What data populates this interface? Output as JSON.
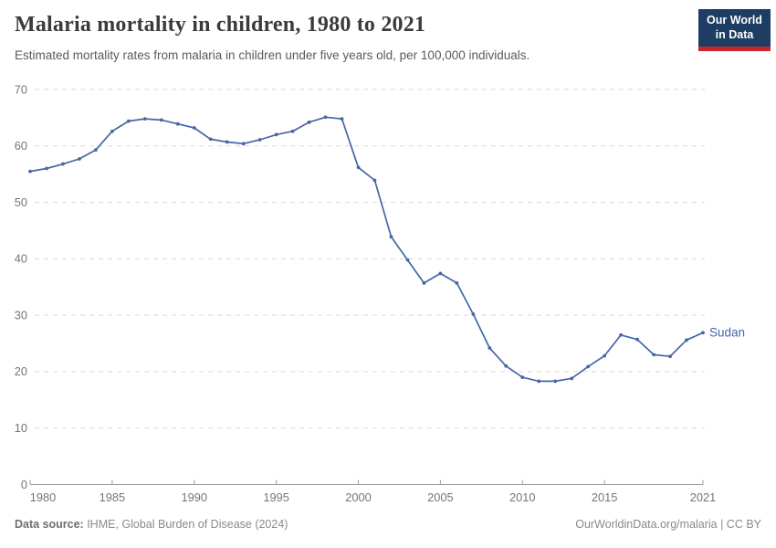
{
  "header": {
    "title": "Malaria mortality in children, 1980 to 2021",
    "subtitle": "Estimated mortality rates from malaria in children under five years old, per 100,000 individuals.",
    "logo": {
      "line1": "Our World",
      "line2": "in Data",
      "bg_color": "#1d3d63",
      "accent_color": "#c9252d"
    }
  },
  "footer": {
    "source_label": "Data source:",
    "source_text": " IHME, Global Burden of Disease (2024)",
    "credit": "OurWorldinData.org/malaria | CC BY"
  },
  "chart_data": {
    "type": "line",
    "title": "Malaria mortality in children, 1980 to 2021",
    "subtitle": "Estimated mortality rates from malaria in children under five years old, per 100,000 individuals.",
    "xlabel": "",
    "ylabel": "",
    "xlim": [
      1980,
      2021
    ],
    "ylim": [
      0,
      70
    ],
    "x_ticks": [
      1980,
      1985,
      1990,
      1995,
      2000,
      2005,
      2010,
      2015,
      2021
    ],
    "y_ticks": [
      0,
      10,
      20,
      30,
      40,
      50,
      60,
      70
    ],
    "grid": "horizontal dashed",
    "legend_position": "end-of-line label",
    "grid_color": "#dadada",
    "axis_color": "#9e9e9e",
    "tick_label_color": "#757575",
    "series": [
      {
        "name": "Sudan",
        "color": "#4666a5",
        "x": [
          1980,
          1981,
          1982,
          1983,
          1984,
          1985,
          1986,
          1987,
          1988,
          1989,
          1990,
          1991,
          1992,
          1993,
          1994,
          1995,
          1996,
          1997,
          1998,
          1999,
          2000,
          2001,
          2002,
          2003,
          2004,
          2005,
          2006,
          2007,
          2008,
          2009,
          2010,
          2011,
          2012,
          2013,
          2014,
          2015,
          2016,
          2017,
          2018,
          2019,
          2020,
          2021
        ],
        "values": [
          55.5,
          56.0,
          56.8,
          57.7,
          59.3,
          62.6,
          64.4,
          64.8,
          64.6,
          63.9,
          63.2,
          61.2,
          60.7,
          60.4,
          61.1,
          62.0,
          62.6,
          64.2,
          65.1,
          64.8,
          56.2,
          53.9,
          43.9,
          39.8,
          35.7,
          37.4,
          35.7,
          30.2,
          24.2,
          21.0,
          19.0,
          18.3,
          18.3,
          18.8,
          20.9,
          22.8,
          26.5,
          25.7,
          23.0,
          22.7,
          25.6,
          26.9
        ]
      }
    ]
  }
}
